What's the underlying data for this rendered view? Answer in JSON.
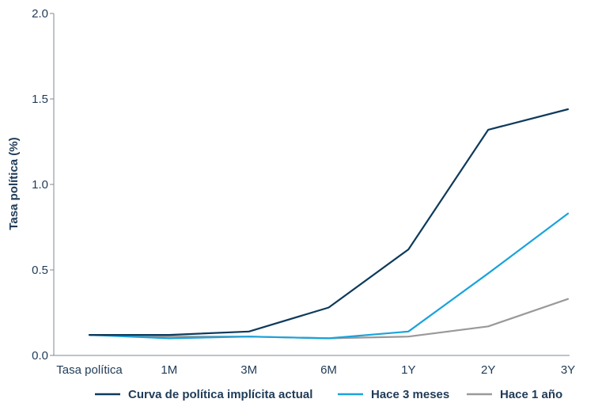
{
  "chart_data": {
    "type": "line",
    "title": "",
    "xlabel": "",
    "ylabel": "Tasa política (%)",
    "categories": [
      "Tasa política",
      "1M",
      "3M",
      "6M",
      "1Y",
      "2Y",
      "3Y"
    ],
    "ylim": [
      0,
      2.0
    ],
    "yticks": [
      "0.0",
      "0.5",
      "1.0",
      "1.5",
      "2.0"
    ],
    "grid": false,
    "legend_position": "bottom",
    "series": [
      {
        "name": "Curva de política implícita actual",
        "color": "#0d3a5c",
        "values": [
          0.12,
          0.12,
          0.14,
          0.28,
          0.62,
          1.32,
          1.44
        ]
      },
      {
        "name": "Hace 3 meses",
        "color": "#1aa3dc",
        "values": [
          0.12,
          0.1,
          0.11,
          0.1,
          0.14,
          0.48,
          0.83
        ]
      },
      {
        "name": "Hace 1 año",
        "color": "#999999",
        "values": [
          0.12,
          0.11,
          0.11,
          0.1,
          0.11,
          0.17,
          0.33
        ]
      }
    ]
  }
}
